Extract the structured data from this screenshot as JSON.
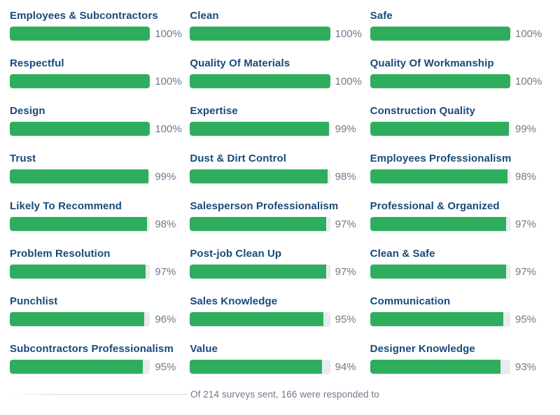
{
  "theme": {
    "bar_fill": "#2eae5d",
    "bar_track": "#e9ecef",
    "label_color": "#184a7d",
    "percent_color": "#6e7a8a"
  },
  "ratings": [
    {
      "label": "Employees & Subcontractors",
      "value": 100,
      "percent_label": "100%"
    },
    {
      "label": "Clean",
      "value": 100,
      "percent_label": "100%"
    },
    {
      "label": "Safe",
      "value": 100,
      "percent_label": "100%"
    },
    {
      "label": "Respectful",
      "value": 100,
      "percent_label": "100%"
    },
    {
      "label": "Quality Of Materials",
      "value": 100,
      "percent_label": "100%"
    },
    {
      "label": "Quality Of Workmanship",
      "value": 100,
      "percent_label": "100%"
    },
    {
      "label": "Design",
      "value": 100,
      "percent_label": "100%"
    },
    {
      "label": "Expertise",
      "value": 99,
      "percent_label": "99%"
    },
    {
      "label": "Construction Quality",
      "value": 99,
      "percent_label": "99%"
    },
    {
      "label": "Trust",
      "value": 99,
      "percent_label": "99%"
    },
    {
      "label": "Dust & Dirt Control",
      "value": 98,
      "percent_label": "98%"
    },
    {
      "label": "Employees Professionalism",
      "value": 98,
      "percent_label": "98%"
    },
    {
      "label": "Likely To Recommend",
      "value": 98,
      "percent_label": "98%"
    },
    {
      "label": "Salesperson Professionalism",
      "value": 97,
      "percent_label": "97%"
    },
    {
      "label": "Professional & Organized",
      "value": 97,
      "percent_label": "97%"
    },
    {
      "label": "Problem Resolution",
      "value": 97,
      "percent_label": "97%"
    },
    {
      "label": "Post-job Clean Up",
      "value": 97,
      "percent_label": "97%"
    },
    {
      "label": "Clean & Safe",
      "value": 97,
      "percent_label": "97%"
    },
    {
      "label": "Punchlist",
      "value": 96,
      "percent_label": "96%"
    },
    {
      "label": "Sales Knowledge",
      "value": 95,
      "percent_label": "95%"
    },
    {
      "label": "Communication",
      "value": 95,
      "percent_label": "95%"
    },
    {
      "label": "Subcontractors Professionalism",
      "value": 95,
      "percent_label": "95%"
    },
    {
      "label": "Value",
      "value": 94,
      "percent_label": "94%"
    },
    {
      "label": "Designer Knowledge",
      "value": 93,
      "percent_label": "93%"
    }
  ],
  "footer": {
    "note": "Of 214 surveys sent, 166 were responded to"
  },
  "chart_data": {
    "type": "bar",
    "orientation": "horizontal",
    "layout": "3-column grid, row-major order",
    "categories": [
      "Employees & Subcontractors",
      "Clean",
      "Safe",
      "Respectful",
      "Quality Of Materials",
      "Quality Of Workmanship",
      "Design",
      "Expertise",
      "Construction Quality",
      "Trust",
      "Dust & Dirt Control",
      "Employees Professionalism",
      "Likely To Recommend",
      "Salesperson Professionalism",
      "Professional & Organized",
      "Problem Resolution",
      "Post-job Clean Up",
      "Clean & Safe",
      "Punchlist",
      "Sales Knowledge",
      "Communication",
      "Subcontractors Professionalism",
      "Value",
      "Designer Knowledge"
    ],
    "values": [
      100,
      100,
      100,
      100,
      100,
      100,
      100,
      99,
      99,
      99,
      98,
      98,
      98,
      97,
      97,
      97,
      97,
      97,
      96,
      95,
      95,
      95,
      94,
      93
    ],
    "value_suffix": "%",
    "xlim": [
      0,
      100
    ],
    "title": "",
    "xlabel": "",
    "ylabel": "",
    "grid": false,
    "legend": false,
    "annotation": "Of 214 surveys sent, 166 were responded to"
  }
}
